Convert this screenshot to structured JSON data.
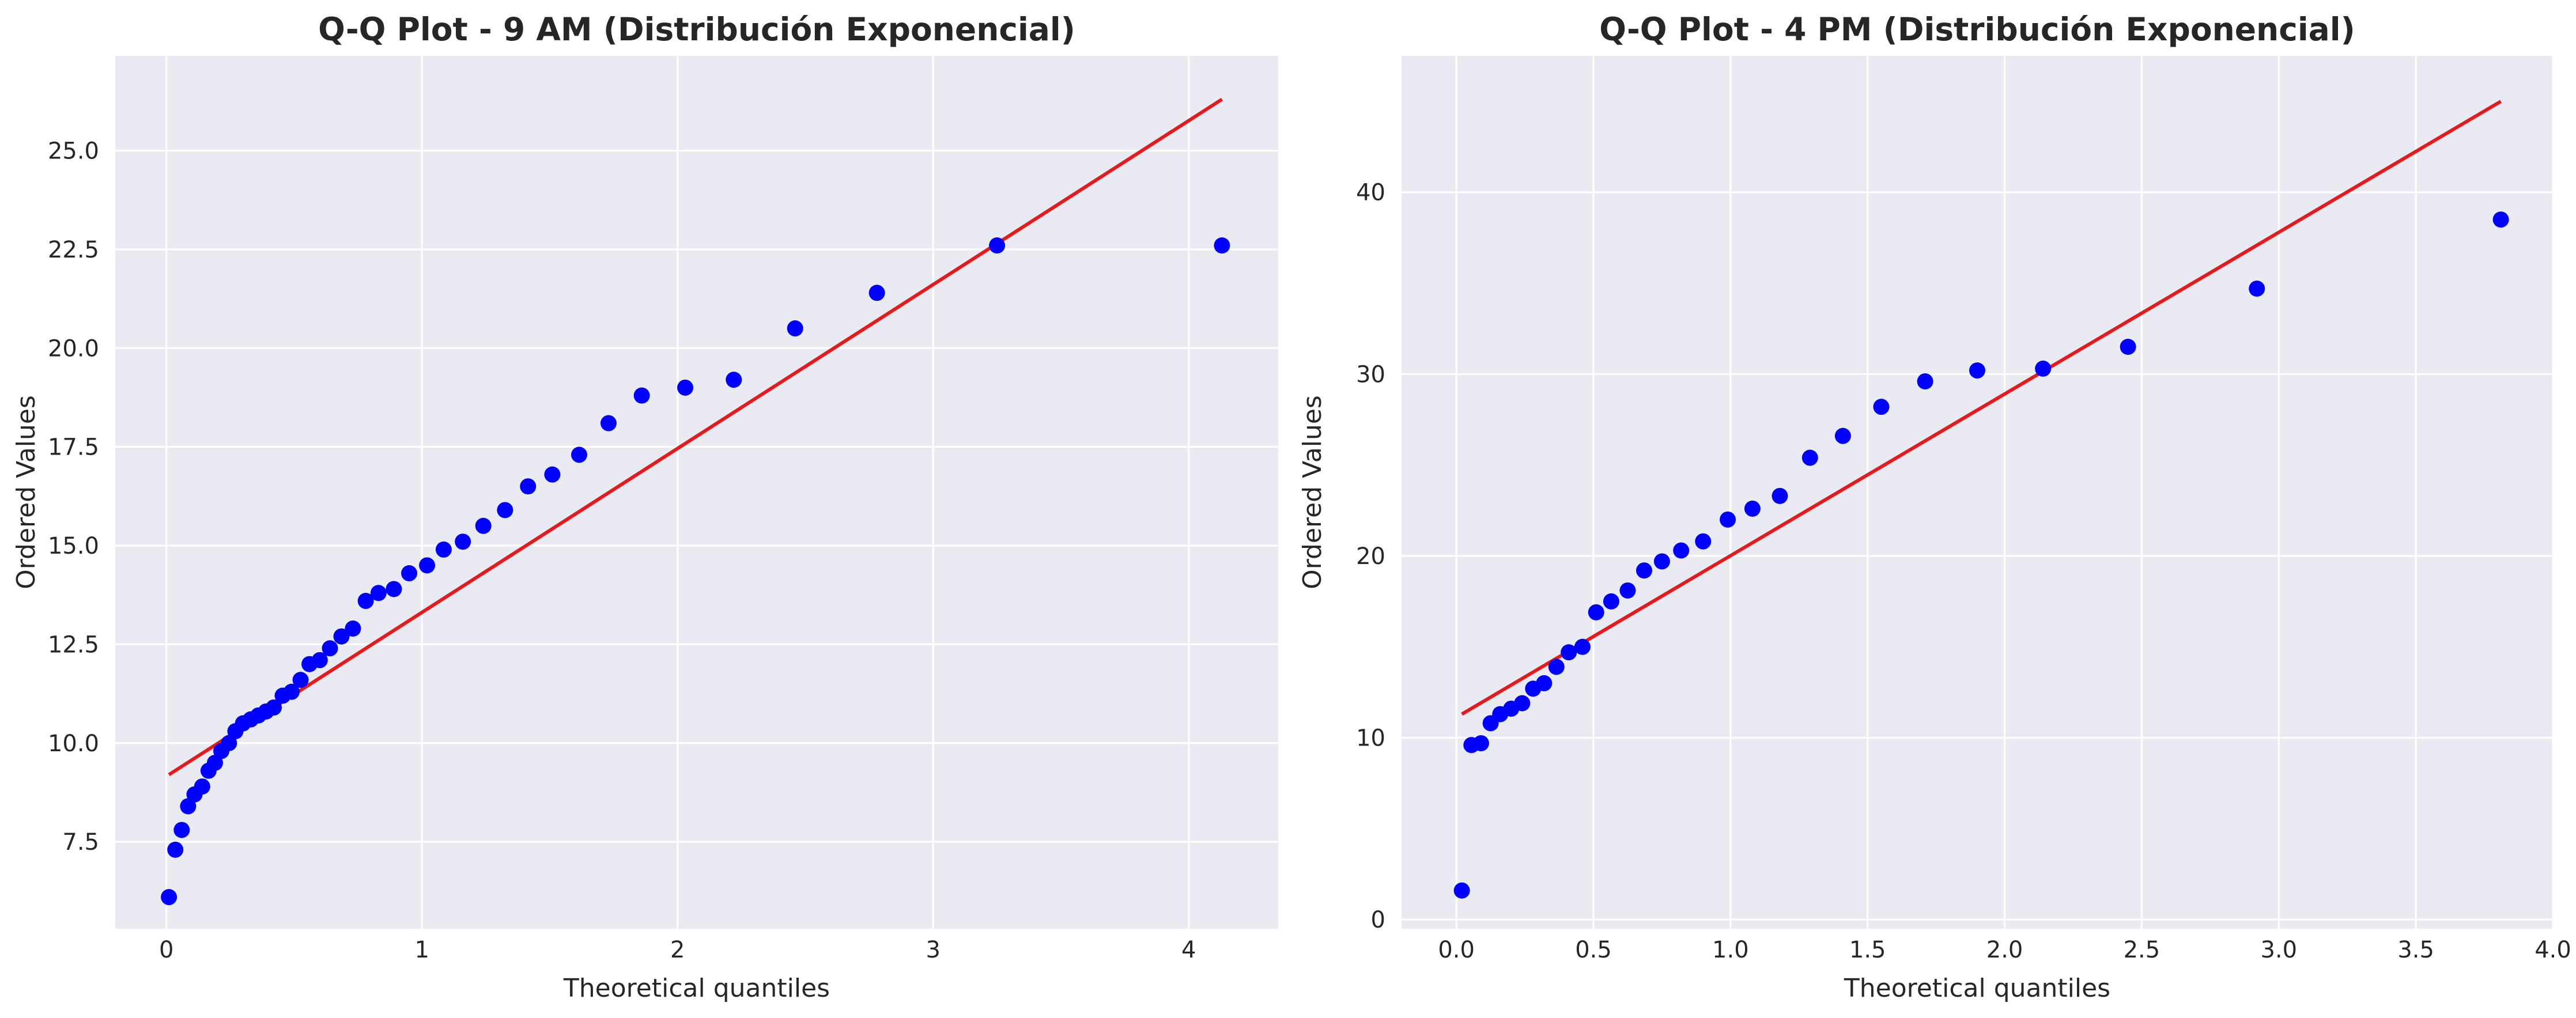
{
  "chart_data": [
    {
      "type": "scatter",
      "title": "Q-Q Plot - 9 AM (Distribución Exponencial)",
      "xlabel": "Theoretical quantiles",
      "ylabel": "Ordered Values",
      "xlim": [
        -0.2,
        4.35
      ],
      "ylim": [
        5.3,
        27.4
      ],
      "xticks": [
        0,
        1,
        2,
        3,
        4
      ],
      "xtick_labels": [
        "0",
        "1",
        "2",
        "3",
        "4"
      ],
      "yticks": [
        7.5,
        10.0,
        12.5,
        15.0,
        17.5,
        20.0,
        22.5,
        25.0
      ],
      "ytick_labels": [
        "7.5",
        "10.0",
        "12.5",
        "15.0",
        "17.5",
        "20.0",
        "22.5",
        "25.0"
      ],
      "grid": true,
      "points_color": "#0000ff",
      "line_color": "#e41a1c",
      "series": [
        {
          "kind": "points",
          "x": [
            0.01,
            0.035,
            0.06,
            0.085,
            0.11,
            0.14,
            0.165,
            0.19,
            0.215,
            0.245,
            0.27,
            0.3,
            0.33,
            0.36,
            0.39,
            0.42,
            0.455,
            0.49,
            0.525,
            0.56,
            0.6,
            0.64,
            0.685,
            0.73,
            0.78,
            0.83,
            0.89,
            0.95,
            1.02,
            1.085,
            1.16,
            1.24,
            1.325,
            1.415,
            1.51,
            1.615,
            1.73,
            1.86,
            2.03,
            2.22,
            2.46,
            2.78,
            3.25,
            4.13
          ],
          "y": [
            6.1,
            7.3,
            7.8,
            8.4,
            8.7,
            8.9,
            9.3,
            9.5,
            9.8,
            10.0,
            10.3,
            10.5,
            10.6,
            10.7,
            10.8,
            10.9,
            11.2,
            11.3,
            11.6,
            12.0,
            12.1,
            12.4,
            12.7,
            12.9,
            13.6,
            13.8,
            13.9,
            14.3,
            14.5,
            14.9,
            15.1,
            15.5,
            15.9,
            16.5,
            16.8,
            17.3,
            18.1,
            18.8,
            19.0,
            19.2,
            20.5,
            21.4,
            22.6,
            22.6
          ]
        },
        {
          "kind": "line",
          "x": [
            0.01,
            4.13
          ],
          "y": [
            9.2,
            26.3
          ]
        }
      ]
    },
    {
      "type": "scatter",
      "title": "Q-Q Plot - 4 PM (Distribución Exponencial)",
      "xlabel": "Theoretical quantiles",
      "ylabel": "Ordered Values",
      "xlim": [
        -0.2,
        4.0
      ],
      "ylim": [
        -0.5,
        47.5
      ],
      "xticks": [
        0.0,
        0.5,
        1.0,
        1.5,
        2.0,
        2.5,
        3.0,
        3.5,
        4.0
      ],
      "xtick_labels": [
        "0.0",
        "0.5",
        "1.0",
        "1.5",
        "2.0",
        "2.5",
        "3.0",
        "3.5",
        "4.0"
      ],
      "yticks": [
        0,
        10,
        20,
        30,
        40
      ],
      "ytick_labels": [
        "0",
        "10",
        "20",
        "30",
        "40"
      ],
      "grid": true,
      "points_color": "#0000ff",
      "line_color": "#e41a1c",
      "series": [
        {
          "kind": "points",
          "x": [
            0.02,
            0.055,
            0.09,
            0.125,
            0.16,
            0.2,
            0.24,
            0.28,
            0.32,
            0.365,
            0.41,
            0.46,
            0.51,
            0.565,
            0.625,
            0.685,
            0.75,
            0.82,
            0.9,
            0.99,
            1.08,
            1.18,
            1.29,
            1.41,
            1.55,
            1.71,
            1.9,
            2.14,
            2.45,
            2.92,
            3.81
          ],
          "y": [
            1.6,
            9.6,
            9.7,
            10.8,
            11.3,
            11.6,
            11.9,
            12.7,
            13.0,
            13.9,
            14.7,
            15.0,
            16.9,
            17.5,
            18.1,
            19.2,
            19.7,
            20.3,
            20.8,
            22.0,
            22.6,
            23.3,
            25.4,
            26.6,
            28.2,
            29.6,
            30.2,
            30.3,
            31.5,
            34.7,
            38.5
          ]
        },
        {
          "kind": "line",
          "x": [
            0.02,
            3.81
          ],
          "y": [
            11.3,
            45.0
          ]
        }
      ]
    }
  ]
}
